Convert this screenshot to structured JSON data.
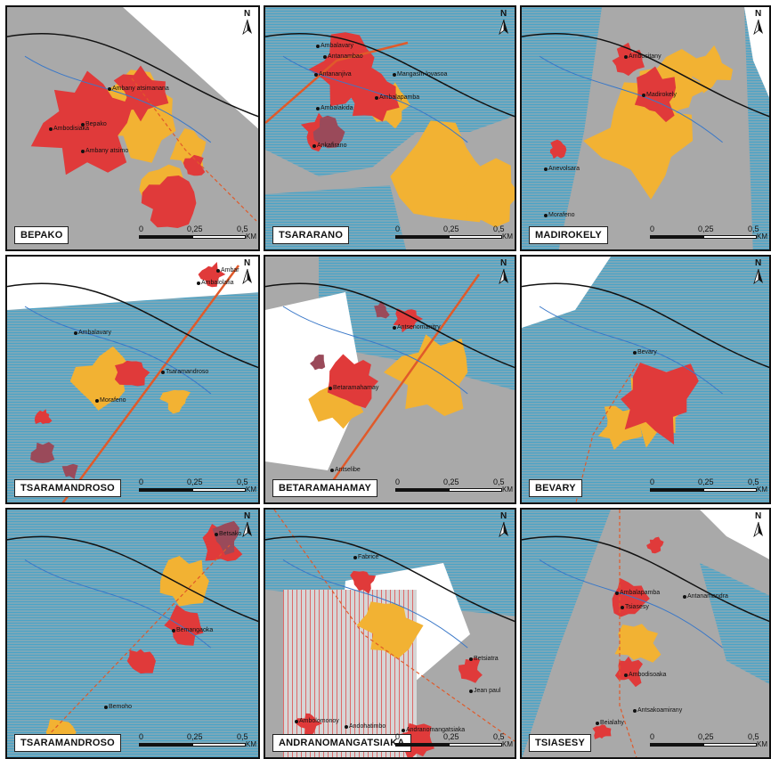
{
  "panels": [
    {
      "name": "BEPAKO",
      "places": [
        "Ambany atsimanana",
        "Ambodisiaka",
        "Bepako",
        "Ambany atsimo"
      ],
      "scale": [
        "0",
        "0,25",
        "0,5"
      ],
      "unit": "KM",
      "north": "N"
    },
    {
      "name": "TSARARANO",
      "places": [
        "Ambalavary",
        "Antanambao",
        "Antananjiva",
        "Mangasin lovasoa",
        "Ambalakida",
        "Ambalapamba",
        "Ankafirano"
      ],
      "scale": [
        "0",
        "0,25",
        "0,5"
      ],
      "unit": "KM",
      "north": "N"
    },
    {
      "name": "MADIROKELY",
      "places": [
        "Ambositany",
        "Madirokely",
        "Anevolsara",
        "Morafeno"
      ],
      "scale": [
        "0",
        "0,25",
        "0,5"
      ],
      "unit": "KM",
      "north": "N"
    },
    {
      "name": "TSARAMANDROSO",
      "places": [
        "Ambar",
        "Ambalolafia",
        "Ambalavary",
        "Tsaramandroso",
        "Morafeno"
      ],
      "scale": [
        "0",
        "0,25",
        "0,5"
      ],
      "unit": "KM",
      "north": "N"
    },
    {
      "name": "BETARAMAHAMAY",
      "places": [
        "Antsenomanitry",
        "Betaramahamay",
        "Antselibe"
      ],
      "scale": [
        "0",
        "0,25",
        "0,5"
      ],
      "unit": "KM",
      "north": "N"
    },
    {
      "name": "BEVARY",
      "places": [
        "Bevary"
      ],
      "scale": [
        "0",
        "0,25",
        "0,5"
      ],
      "unit": "KM",
      "north": "N"
    },
    {
      "name": "TSARAMANDROSO",
      "places": [
        "Betsako",
        "Bemangaoka",
        "Bemoho"
      ],
      "scale": [
        "0",
        "0,25",
        "0,5"
      ],
      "unit": "KM",
      "north": "N"
    },
    {
      "name": "ANDRANOMANGATSIAKA",
      "places": [
        "Fabrice",
        "Ambolomonoy",
        "Andohatimbo",
        "Betsiatra",
        "Jean paul",
        "Andranomangatsiaka"
      ],
      "scale": [
        "0",
        "0,25",
        "0,5"
      ],
      "unit": "KM",
      "north": "N"
    },
    {
      "name": "TSIASESY",
      "places": [
        "Ambalapamba",
        "Antanamandra",
        "Tsiasesy",
        "Ambodisoaka",
        "Antsakoamirany",
        "Beialahy"
      ],
      "scale": [
        "0",
        "0,25",
        "0,5"
      ],
      "unit": "KM",
      "north": "N"
    }
  ],
  "colors": {
    "terrain": "#a9a9a9",
    "water": "#4aa3c7",
    "village": "#e03a3a",
    "cropland": "#f2b233",
    "road": "#e05a2a",
    "boundary": "#111111",
    "old_village": "#9a4a5a"
  }
}
